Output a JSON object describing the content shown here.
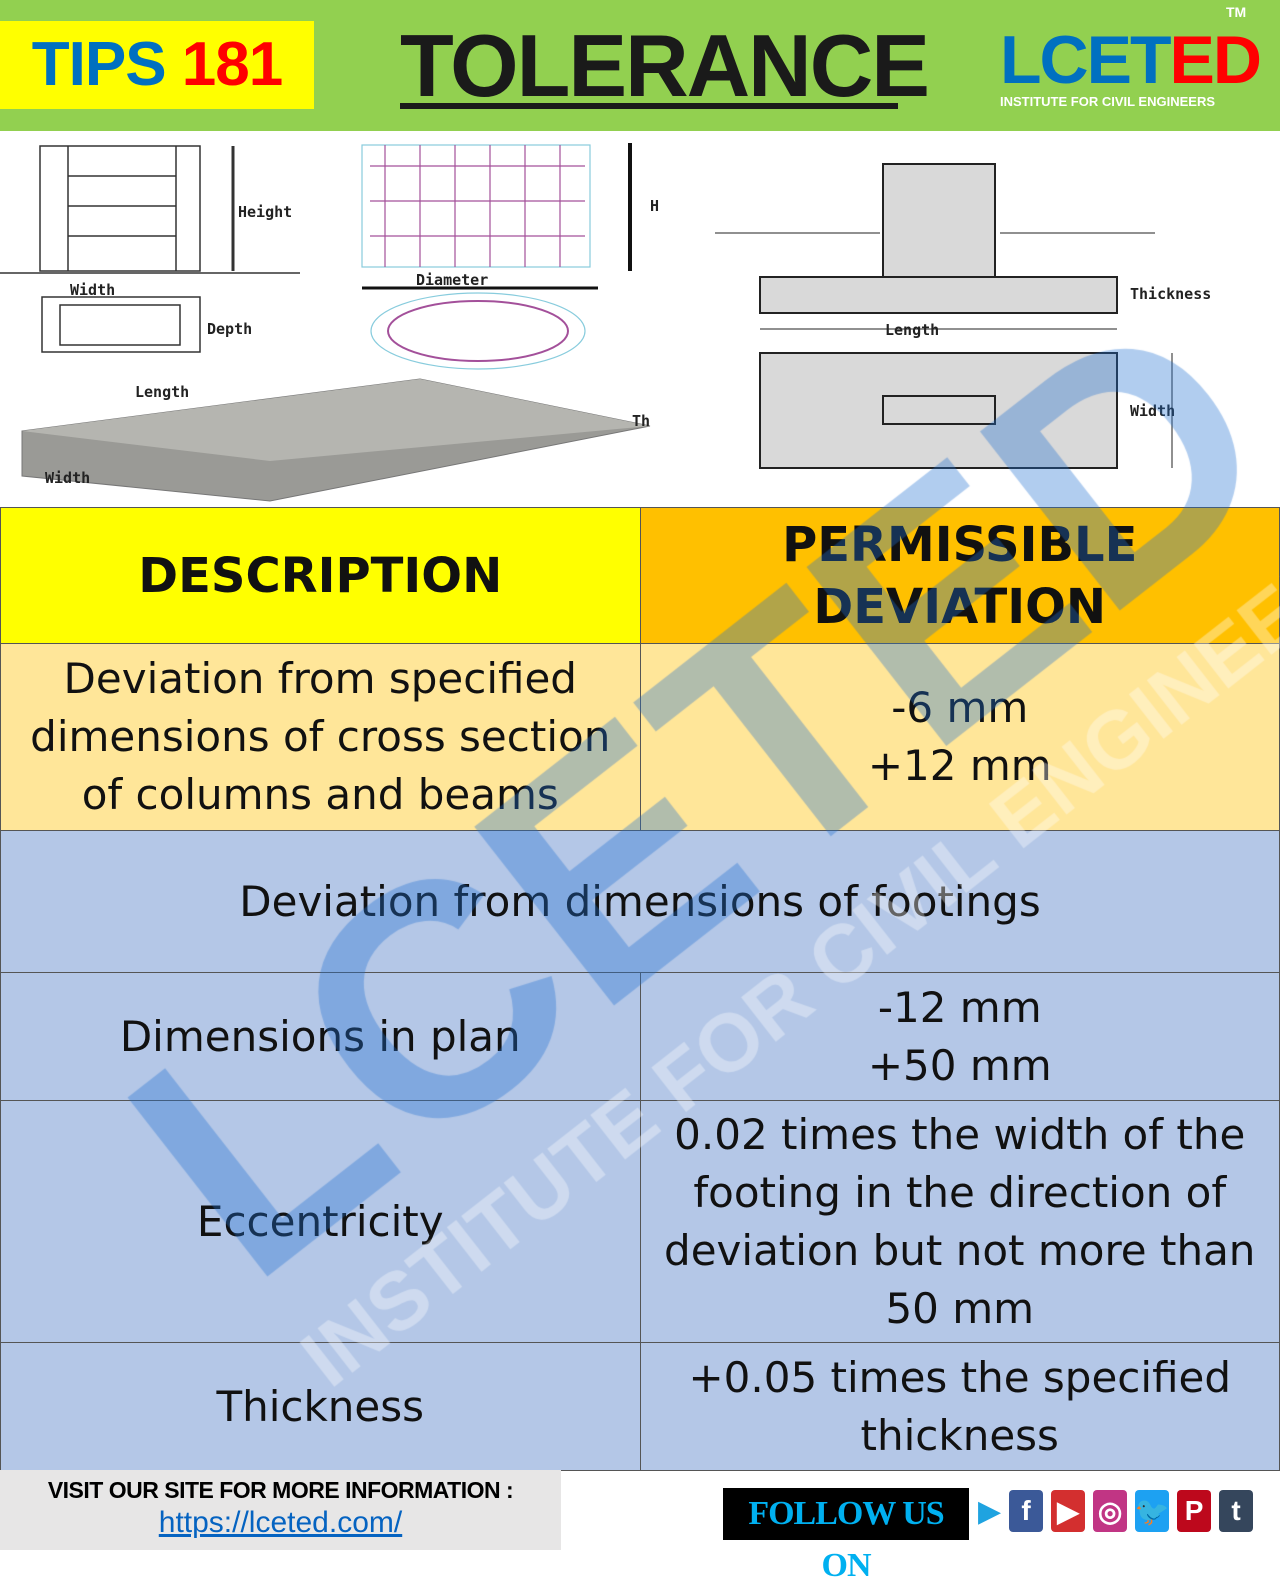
{
  "header": {
    "tips_label": "TIPS",
    "tips_number": "181",
    "title": "TOLERANCE",
    "logo_blue": "LCET",
    "logo_red": "ED",
    "logo_tm": "TM",
    "logo_sub": "INSTITUTE FOR CIVIL ENGINEERS"
  },
  "diagrams": {
    "column": {
      "height": "Height",
      "width": "Width",
      "depth": "Depth"
    },
    "circular": {
      "diameter": "Diameter",
      "h": "H"
    },
    "slab": {
      "length": "Length",
      "width": "Width",
      "thickness": "Th"
    },
    "footing": {
      "thickness": "Thickness",
      "length": "Length",
      "width": "Width"
    }
  },
  "table": {
    "headers": [
      "DESCRIPTION",
      "PERMISSIBLE DEVIATION"
    ],
    "rows": [
      {
        "description": "Deviation from specified dimensions of cross section of columns and beams",
        "deviation": [
          "-6 mm",
          "+12 mm"
        ]
      },
      {
        "section": "Deviation from dimensions of footings"
      },
      {
        "description": "Dimensions in plan",
        "deviation": [
          "-12 mm",
          "+50 mm"
        ]
      },
      {
        "description": "Eccentricity",
        "deviation": [
          "0.02 times the width of the footing in the direction of deviation but not more than 50 mm"
        ]
      },
      {
        "description": "Thickness",
        "deviation": [
          "+0.05 times the specified thickness"
        ]
      }
    ]
  },
  "watermark": {
    "main": "LCETED",
    "sub": "INSTITUTE FOR CIVIL ENGINEERS"
  },
  "footer": {
    "visit": "VISIT OUR SITE FOR MORE INFORMATION :",
    "url": "https://lceted.com/",
    "follow": "FOLLOW US ON",
    "social": [
      {
        "icon": "facebook-icon",
        "glyph": "f",
        "color": "#3b5998"
      },
      {
        "icon": "youtube-icon",
        "glyph": "▶",
        "color": "#d32f2f"
      },
      {
        "icon": "instagram-icon",
        "glyph": "◎",
        "color": "#c13584"
      },
      {
        "icon": "twitter-icon",
        "glyph": "🐦",
        "color": "#1da1f2"
      },
      {
        "icon": "pinterest-icon",
        "glyph": "P",
        "color": "#bd081c"
      },
      {
        "icon": "tumblr-icon",
        "glyph": "t",
        "color": "#35465c"
      }
    ]
  }
}
